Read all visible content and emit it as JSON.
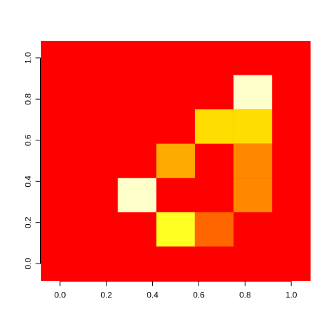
{
  "chart_data": {
    "type": "heatmap",
    "title": "",
    "xlabel": "",
    "ylabel": "",
    "xlim": [
      -0.0833,
      1.0833
    ],
    "ylim": [
      -0.0833,
      1.0833
    ],
    "grid": false,
    "legend": "none",
    "x_ticks": [
      "0.0",
      "0.2",
      "0.4",
      "0.6",
      "0.8",
      "1.0"
    ],
    "x_tick_values": [
      0.0,
      0.2,
      0.4,
      0.6,
      0.8,
      1.0
    ],
    "y_ticks": [
      "0.0",
      "0.2",
      "0.4",
      "0.6",
      "0.8",
      "1.0"
    ],
    "y_tick_values": [
      0.0,
      0.2,
      0.4,
      0.6,
      0.8,
      1.0
    ],
    "x_centers": [
      0.0,
      0.1667,
      0.3333,
      0.5,
      0.6667,
      0.8333,
      1.0
    ],
    "y_centers": [
      0.0,
      0.1667,
      0.3333,
      0.5,
      0.6667,
      0.8333,
      1.0
    ],
    "background_color": "#FF0000",
    "cells": [
      {
        "x": 0.3333,
        "y": 0.3333,
        "color": "#FFFFCC"
      },
      {
        "x": 0.5,
        "y": 0.1667,
        "color": "#FFFF22"
      },
      {
        "x": 0.6667,
        "y": 0.1667,
        "color": "#FF6600"
      },
      {
        "x": 0.5,
        "y": 0.5,
        "color": "#FFAA00"
      },
      {
        "x": 0.6667,
        "y": 0.6667,
        "color": "#FFDD00"
      },
      {
        "x": 0.8333,
        "y": 0.6667,
        "color": "#FFDD00"
      },
      {
        "x": 0.8333,
        "y": 0.8333,
        "color": "#FFFFCC"
      },
      {
        "x": 0.8333,
        "y": 0.5,
        "color": "#FF8800"
      },
      {
        "x": 0.8333,
        "y": 0.3333,
        "color": "#FF8800"
      }
    ]
  }
}
